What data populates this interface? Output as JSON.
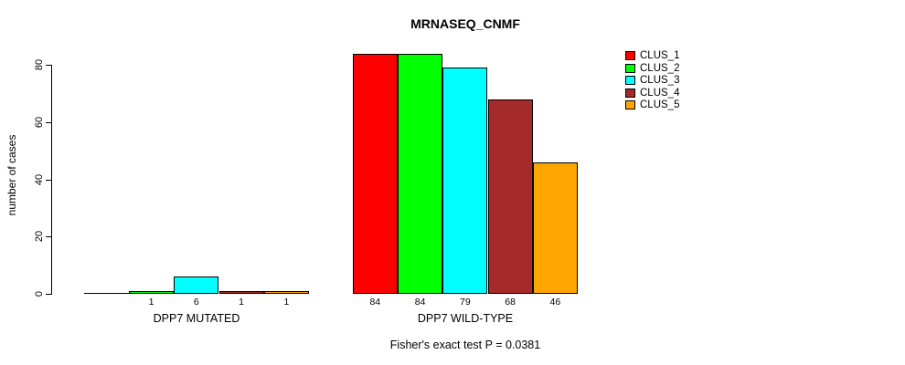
{
  "title": "MRNASEQ_CNMF",
  "caption": "Fisher's exact test P = 0.0381",
  "y_axis": {
    "label": "number of cases",
    "ticks": [
      0,
      20,
      40,
      60,
      80
    ]
  },
  "legend": {
    "position": "right",
    "items": [
      {
        "label": "CLUS_1",
        "color": "#FF0000"
      },
      {
        "label": "CLUS_2",
        "color": "#00FF00"
      },
      {
        "label": "CLUS_3",
        "color": "#00FFFF"
      },
      {
        "label": "CLUS_4",
        "color": "#A52A2A"
      },
      {
        "label": "CLUS_5",
        "color": "#FFA500"
      }
    ]
  },
  "chart_data": {
    "type": "bar",
    "title": "MRNASEQ_CNMF",
    "xlabel": "",
    "ylabel": "number of cases",
    "ylim": [
      0,
      84
    ],
    "yticks": [
      0,
      20,
      40,
      60,
      80
    ],
    "grid": false,
    "legend_position": "right",
    "categories": [
      "DPP7 MUTATED",
      "DPP7 WILD-TYPE"
    ],
    "series": [
      {
        "name": "CLUS_1",
        "color": "#FF0000",
        "values": [
          0,
          84
        ]
      },
      {
        "name": "CLUS_2",
        "color": "#00FF00",
        "values": [
          1,
          84
        ]
      },
      {
        "name": "CLUS_3",
        "color": "#00FFFF",
        "values": [
          6,
          79
        ]
      },
      {
        "name": "CLUS_4",
        "color": "#A52A2A",
        "values": [
          1,
          68
        ]
      },
      {
        "name": "CLUS_5",
        "color": "#FFA500",
        "values": [
          1,
          46
        ]
      }
    ],
    "bar_value_labels_shown_when": "value > 0",
    "annotation": "Fisher's exact test P = 0.0381"
  }
}
